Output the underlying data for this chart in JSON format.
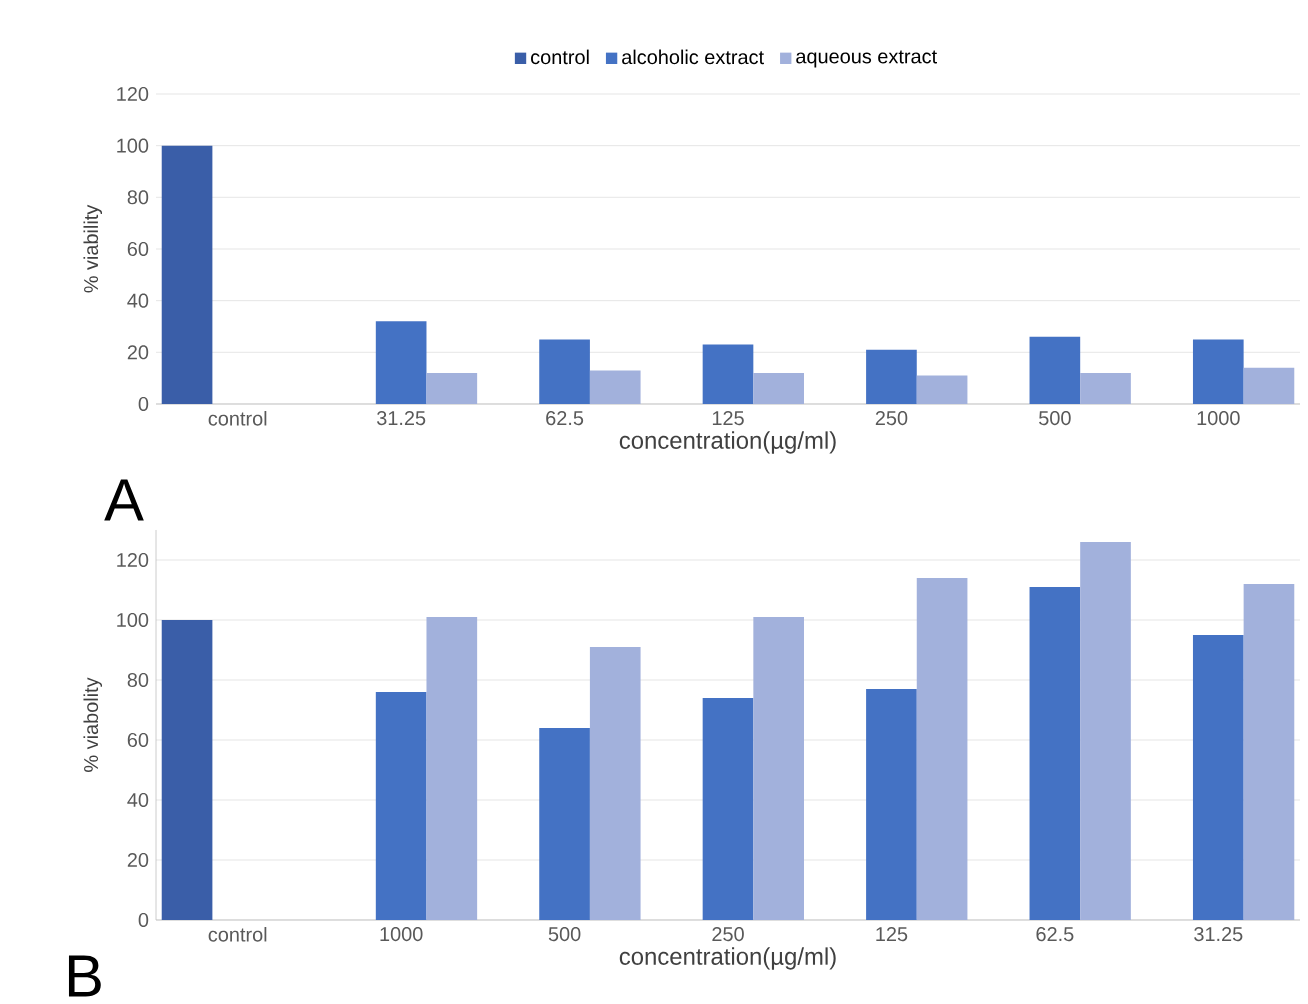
{
  "chart_data": [
    {
      "type": "bar",
      "categories": [
        "control",
        "31.25",
        "62.5",
        "125",
        "250",
        "500",
        "1000"
      ],
      "xlabel": "concentration(µg/ml)",
      "ylabel": "% viability",
      "ylim": [
        0,
        120
      ],
      "yticks": [
        0,
        20,
        40,
        60,
        80,
        100,
        120
      ],
      "grid": "y",
      "legend": "top",
      "annotations": [
        "A"
      ],
      "series": [
        {
          "name": "control",
          "color": "#3a5ea8",
          "values": [
            100,
            null,
            null,
            null,
            null,
            null,
            null
          ]
        },
        {
          "name": "alcoholic extract",
          "color": "#4472c4",
          "values": [
            null,
            32,
            25,
            23,
            21,
            26,
            25
          ]
        },
        {
          "name": "aqueous extract",
          "color": "#a2b1dc",
          "values": [
            null,
            12,
            13,
            12,
            11,
            12,
            14
          ]
        }
      ]
    },
    {
      "type": "bar",
      "categories": [
        "control",
        "1000",
        "500",
        "250",
        "125",
        "62.5",
        "31.25"
      ],
      "xlabel": "concentration(µg/ml)",
      "ylabel": "% viabolity",
      "ylim": [
        0,
        130
      ],
      "yticks": [
        0,
        20,
        40,
        60,
        80,
        100,
        120
      ],
      "grid": "y",
      "annotations": [
        "B"
      ],
      "series": [
        {
          "color": "#3a5ea8",
          "values": [
            100,
            null,
            null,
            null,
            null,
            null,
            null
          ]
        },
        {
          "color": "#4472c4",
          "values": [
            null,
            76,
            64,
            74,
            77,
            111,
            95
          ]
        },
        {
          "color": "#a2b1dc",
          "values": [
            null,
            101,
            91,
            101,
            114,
            126,
            112
          ]
        }
      ]
    }
  ]
}
